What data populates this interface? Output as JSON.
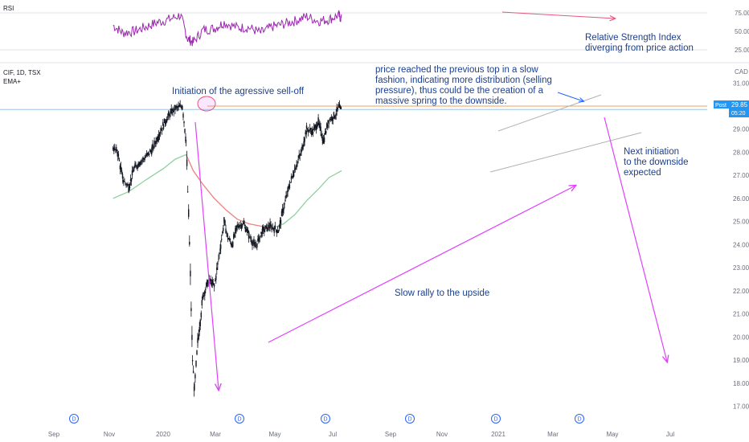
{
  "chart_data": {
    "type": "candlestick",
    "symbol": "CIF, 1D, TSX",
    "indicator": "EMA+",
    "rsi_label": "RSI",
    "price_axis": {
      "ticks": [
        "31.00",
        "30.00",
        "29.00",
        "28.00",
        "27.00",
        "26.00",
        "25.00",
        "24.00",
        "23.00",
        "22.00",
        "21.00",
        "20.00",
        "19.00",
        "18.00",
        "17.00"
      ],
      "currency": "CAD",
      "post_label": "Post",
      "last_price": "29.85",
      "countdown": "05:20"
    },
    "rsi_axis": {
      "ticks": [
        "75.00",
        "50.00",
        "25.00"
      ]
    },
    "time_axis": [
      "Sep",
      "Nov",
      "2020",
      "Mar",
      "May",
      "Jul",
      "Sep",
      "Nov",
      "2021",
      "Mar",
      "May",
      "Jul"
    ],
    "event_badges": [
      "D",
      "D",
      "D",
      "D",
      "D",
      "D",
      "D"
    ],
    "price_path": [
      [
        "2019-08-20",
        28.2
      ],
      [
        "2019-09-01",
        28.0
      ],
      [
        "2019-09-15",
        26.8
      ],
      [
        "2019-10-01",
        26.5
      ],
      [
        "2019-10-15",
        27.3
      ],
      [
        "2019-11-01",
        27.6
      ],
      [
        "2019-11-15",
        27.8
      ],
      [
        "2019-12-01",
        28.1
      ],
      [
        "2019-12-15",
        28.6
      ],
      [
        "2020-01-01",
        29.2
      ],
      [
        "2020-01-15",
        29.6
      ],
      [
        "2020-02-01",
        29.9
      ],
      [
        "2020-02-20",
        30.0
      ],
      [
        "2020-03-01",
        28.5
      ],
      [
        "2020-03-10",
        24.0
      ],
      [
        "2020-03-18",
        19.0
      ],
      [
        "2020-03-23",
        17.7
      ],
      [
        "2020-04-01",
        19.8
      ],
      [
        "2020-04-15",
        21.8
      ],
      [
        "2020-05-01",
        22.5
      ],
      [
        "2020-05-15",
        22.2
      ],
      [
        "2020-06-01",
        24.0
      ],
      [
        "2020-06-10",
        25.0
      ],
      [
        "2020-06-20",
        24.3
      ],
      [
        "2020-07-01",
        24.0
      ],
      [
        "2020-07-15",
        24.8
      ],
      [
        "2020-08-01",
        24.9
      ],
      [
        "2020-08-15",
        24.4
      ],
      [
        "2020-09-01",
        23.9
      ],
      [
        "2020-09-20",
        24.6
      ],
      [
        "2020-10-10",
        24.8
      ],
      [
        "2020-11-01",
        24.6
      ],
      [
        "2020-11-15",
        25.6
      ],
      [
        "2020-12-01",
        26.6
      ],
      [
        "2020-12-15",
        27.3
      ],
      [
        "2021-01-01",
        28.0
      ],
      [
        "2021-01-15",
        29.0
      ],
      [
        "2021-02-01",
        28.9
      ],
      [
        "2021-02-15",
        29.3
      ],
      [
        "2021-03-01",
        28.5
      ],
      [
        "2021-03-15",
        29.4
      ],
      [
        "2021-04-01",
        29.6
      ],
      [
        "2021-04-10",
        29.95
      ],
      [
        "2021-04-18",
        29.85
      ]
    ],
    "ema_path": [
      [
        "2019-08-20",
        26.0
      ],
      [
        "2019-10-01",
        26.3
      ],
      [
        "2019-11-15",
        26.8
      ],
      [
        "2020-01-01",
        27.3
      ],
      [
        "2020-02-01",
        27.7
      ],
      [
        "2020-03-01",
        27.9
      ],
      [
        "2020-03-20",
        27.2
      ],
      [
        "2020-04-15",
        26.6
      ],
      [
        "2020-05-15",
        26.0
      ],
      [
        "2020-06-15",
        25.5
      ],
      [
        "2020-07-15",
        25.1
      ],
      [
        "2020-08-15",
        24.9
      ],
      [
        "2020-09-15",
        24.8
      ],
      [
        "2020-10-15",
        24.7
      ],
      [
        "2020-11-15",
        24.9
      ],
      [
        "2020-12-15",
        25.3
      ],
      [
        "2021-01-15",
        25.9
      ],
      [
        "2021-02-15",
        26.4
      ],
      [
        "2021-03-15",
        26.9
      ],
      [
        "2021-04-18",
        27.2
      ]
    ],
    "rsi_path": [
      [
        "2019-08-20",
        58
      ],
      [
        "2019-09-15",
        48
      ],
      [
        "2019-10-15",
        50
      ],
      [
        "2019-11-15",
        56
      ],
      [
        "2019-12-15",
        62
      ],
      [
        "2020-01-15",
        66
      ],
      [
        "2020-02-15",
        72
      ],
      [
        "2020-03-05",
        40
      ],
      [
        "2020-03-20",
        35
      ],
      [
        "2020-04-15",
        52
      ],
      [
        "2020-05-15",
        54
      ],
      [
        "2020-06-10",
        62
      ],
      [
        "2020-07-15",
        55
      ],
      [
        "2020-08-15",
        55
      ],
      [
        "2020-09-15",
        48
      ],
      [
        "2020-10-15",
        56
      ],
      [
        "2020-11-15",
        60
      ],
      [
        "2020-12-15",
        64
      ],
      [
        "2021-01-15",
        70
      ],
      [
        "2021-02-15",
        64
      ],
      [
        "2021-03-15",
        66
      ],
      [
        "2021-04-10",
        72
      ],
      [
        "2021-04-18",
        66
      ]
    ],
    "reference_lines": {
      "previous_top": 30.0,
      "last_price": 29.85
    },
    "annotations": {
      "selloff": "Initiation of the agressive sell-off",
      "distribution": [
        "price reached the previous top in a slow",
        "fashion, indicating more distribution (selling",
        "pressure), thus could be the creation of a",
        "massive spring to the downside."
      ],
      "rally": "Slow rally to the upside",
      "next": [
        "Next initiation",
        "to the downside",
        "expected"
      ],
      "rsi": [
        "Relative Strength Index",
        "diverging from price action"
      ]
    },
    "colors": {
      "candles": "#131722",
      "ema_down": "#f08080",
      "ema_up": "#8fd19e",
      "previous_top": "#f5a05a",
      "last_price": "#9fc5ea",
      "rsi": "#9c27b0",
      "arrows": "#e040fb",
      "rsi_divergence": "#e5577a",
      "channel": "#b0b0b0",
      "annotation_text": "#1c3f8c",
      "price_badge": "#2196f3"
    }
  }
}
